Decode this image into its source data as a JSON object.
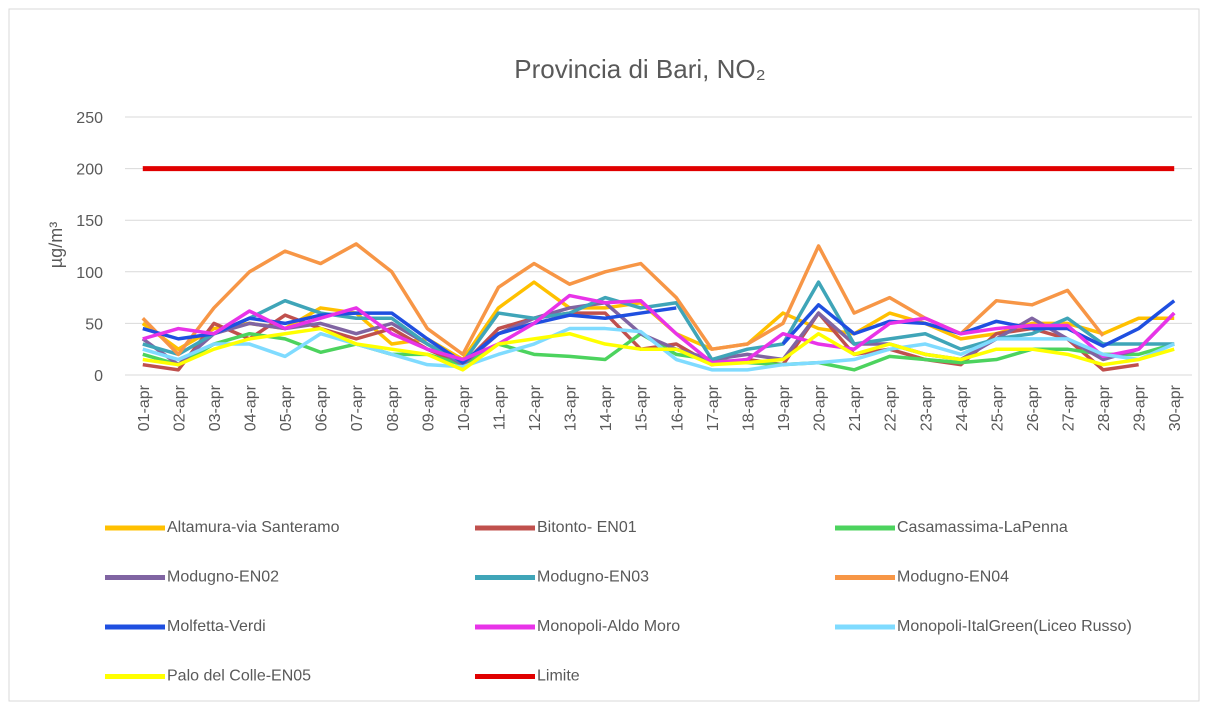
{
  "chart_data": {
    "type": "line",
    "title": "Provincia di Bari, NO₂",
    "y_label": "µg/m³",
    "categories": [
      "01-apr",
      "02-apr",
      "03-apr",
      "04-apr",
      "05-apr",
      "06-apr",
      "07-apr",
      "08-apr",
      "09-apr",
      "10-apr",
      "11-apr",
      "12-apr",
      "13-apr",
      "14-apr",
      "15-apr",
      "16-apr",
      "17-apr",
      "18-apr",
      "19-apr",
      "20-apr",
      "21-apr",
      "22-apr",
      "23-apr",
      "24-apr",
      "25-apr",
      "26-apr",
      "27-apr",
      "28-apr",
      "29-apr",
      "30-apr"
    ],
    "ylim": [
      0,
      250
    ],
    "yticks": [
      0,
      50,
      100,
      150,
      200,
      250
    ],
    "grid": true,
    "series": [
      {
        "name": "Altamura-via Santeramo",
        "color": "#FFC000",
        "values": [
          50,
          25,
          45,
          50,
          45,
          65,
          60,
          30,
          35,
          15,
          65,
          90,
          65,
          65,
          70,
          40,
          25,
          30,
          60,
          45,
          40,
          60,
          50,
          35,
          40,
          50,
          50,
          40,
          55,
          55
        ]
      },
      {
        "name": "Bitonto- EN01",
        "color": "#C0504D",
        "values": [
          10,
          5,
          50,
          35,
          58,
          45,
          35,
          45,
          25,
          10,
          45,
          55,
          60,
          60,
          25,
          30,
          10,
          15,
          10,
          60,
          20,
          25,
          15,
          10,
          40,
          45,
          35,
          5,
          10,
          null
        ]
      },
      {
        "name": "Casamassima-LaPenna",
        "color": "#4CD35E",
        "values": [
          20,
          10,
          30,
          40,
          35,
          22,
          30,
          20,
          20,
          10,
          30,
          20,
          18,
          15,
          40,
          20,
          15,
          12,
          10,
          12,
          5,
          18,
          15,
          12,
          15,
          25,
          25,
          20,
          20,
          30
        ]
      },
      {
        "name": "Modugno-EN02",
        "color": "#8064A2",
        "values": [
          35,
          10,
          40,
          50,
          45,
          50,
          40,
          50,
          30,
          10,
          40,
          55,
          65,
          70,
          40,
          25,
          15,
          20,
          15,
          60,
          30,
          30,
          20,
          15,
          35,
          55,
          35,
          15,
          25,
          60
        ]
      },
      {
        "name": "Modugno-EN03",
        "color": "#3FA5B8",
        "values": [
          30,
          20,
          40,
          55,
          72,
          60,
          55,
          55,
          30,
          12,
          60,
          55,
          60,
          75,
          65,
          70,
          15,
          25,
          30,
          90,
          30,
          35,
          40,
          25,
          35,
          40,
          55,
          30,
          30,
          30
        ]
      },
      {
        "name": "Modugno-EN04",
        "color": "#F79646",
        "values": [
          55,
          20,
          65,
          100,
          120,
          108,
          127,
          100,
          45,
          20,
          85,
          108,
          88,
          100,
          108,
          75,
          25,
          30,
          50,
          125,
          60,
          75,
          55,
          40,
          72,
          68,
          82,
          38,
          null,
          null
        ]
      },
      {
        "name": "Molfetta-Verdi",
        "color": "#1F4FE0",
        "values": [
          45,
          35,
          40,
          55,
          50,
          58,
          60,
          60,
          35,
          12,
          40,
          50,
          58,
          55,
          60,
          65,
          null,
          null,
          30,
          68,
          40,
          52,
          50,
          40,
          52,
          45,
          45,
          28,
          45,
          72
        ]
      },
      {
        "name": "Monopoli-Aldo Moro",
        "color": "#E833E8",
        "values": [
          35,
          45,
          40,
          62,
          45,
          55,
          65,
          40,
          25,
          15,
          30,
          50,
          77,
          70,
          72,
          40,
          12,
          15,
          40,
          30,
          25,
          50,
          55,
          40,
          45,
          48,
          48,
          18,
          25,
          60
        ]
      },
      {
        "name": "Monopoli-ItalGreen(Liceo Russo)",
        "color": "#7FDBFF",
        "values": [
          25,
          15,
          30,
          30,
          18,
          40,
          30,
          20,
          10,
          8,
          20,
          30,
          45,
          45,
          42,
          15,
          5,
          5,
          10,
          12,
          15,
          25,
          30,
          20,
          35,
          35,
          35,
          20,
          15,
          30
        ]
      },
      {
        "name": "Palo del Colle-EN05",
        "color": "#FFFF00",
        "values": [
          15,
          10,
          25,
          35,
          40,
          45,
          30,
          25,
          20,
          5,
          30,
          35,
          40,
          30,
          25,
          25,
          10,
          12,
          15,
          40,
          20,
          30,
          20,
          15,
          25,
          25,
          20,
          10,
          15,
          25
        ]
      },
      {
        "name": "Limite",
        "color": "#E00000",
        "values": [
          200,
          200,
          200,
          200,
          200,
          200,
          200,
          200,
          200,
          200,
          200,
          200,
          200,
          200,
          200,
          200,
          200,
          200,
          200,
          200,
          200,
          200,
          200,
          200,
          200,
          200,
          200,
          200,
          200,
          200
        ]
      }
    ]
  }
}
